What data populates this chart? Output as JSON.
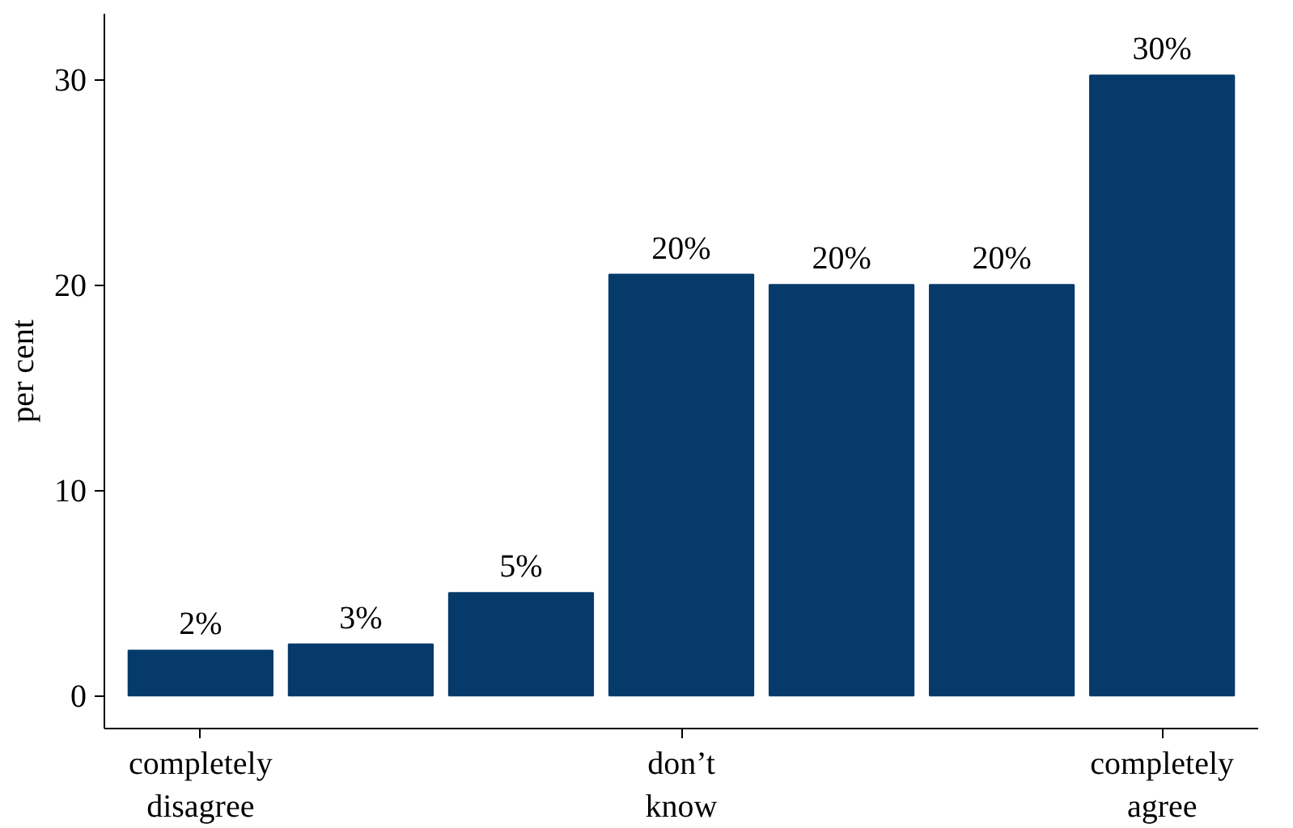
{
  "chart_data": {
    "type": "bar",
    "ylabel": "per cent",
    "categories": [
      "completely\ndisagree",
      null,
      null,
      "don’t\nknow",
      null,
      null,
      "completely\nagree"
    ],
    "values": [
      2.2,
      2.5,
      5.0,
      20.5,
      20.0,
      20.0,
      30.2
    ],
    "value_labels": [
      "2%",
      "3%",
      "5%",
      "20%",
      "20%",
      "20%",
      "30%"
    ],
    "color": "#063a6b",
    "ylim": [
      -1.6,
      33.2
    ],
    "yticks": [
      0,
      10,
      20,
      30
    ],
    "grid": false
  }
}
